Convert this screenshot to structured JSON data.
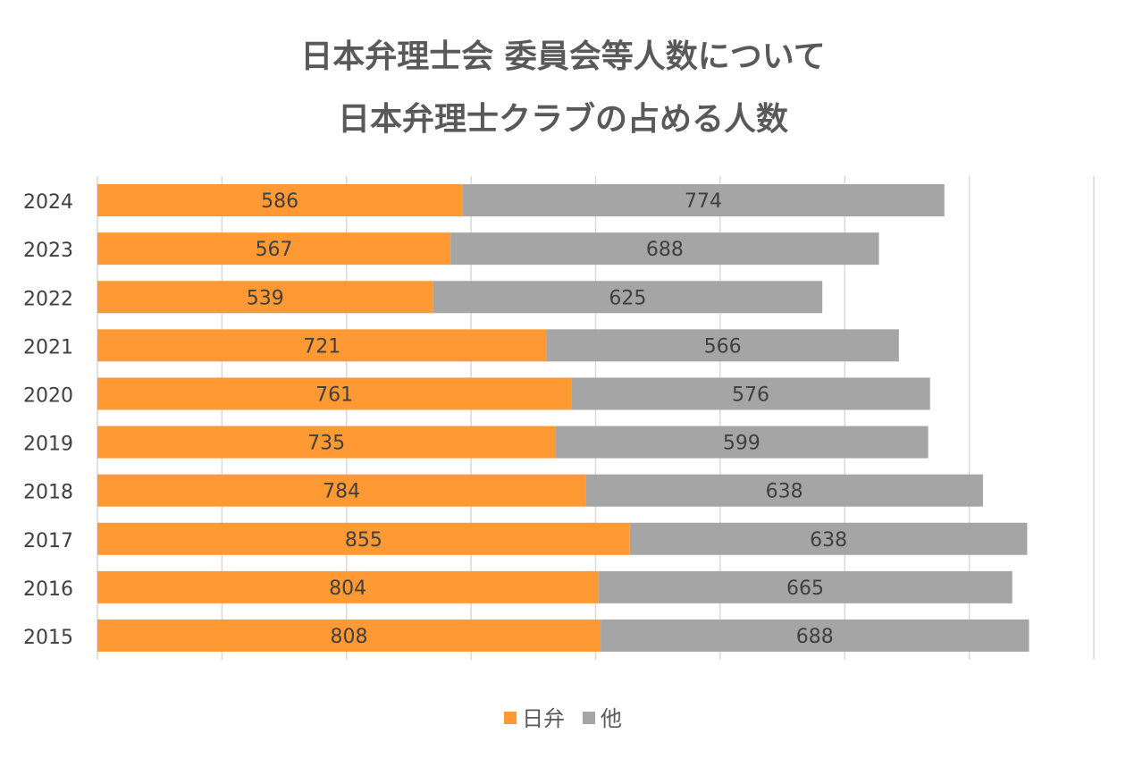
{
  "chart_data": {
    "type": "bar",
    "orientation": "horizontal",
    "stacked": true,
    "title_lines": [
      "日本弁理士会 委員会等人数について",
      "日本弁理士クラブの占める人数"
    ],
    "categories": [
      "2024",
      "2023",
      "2022",
      "2021",
      "2020",
      "2019",
      "2018",
      "2017",
      "2016",
      "2015"
    ],
    "series": [
      {
        "name": "日弁",
        "color": "#FF9933",
        "values": [
          586,
          567,
          539,
          721,
          761,
          735,
          784,
          855,
          804,
          808
        ]
      },
      {
        "name": "他",
        "color": "#A5A5A5",
        "values": [
          774,
          688,
          625,
          566,
          576,
          599,
          638,
          638,
          665,
          688
        ]
      }
    ],
    "xlim": [
      0,
      1600
    ],
    "x_gridline_step": 200,
    "x_tick_labels_shown": false,
    "data_labels": true,
    "grid": true,
    "legend": "bottom"
  }
}
